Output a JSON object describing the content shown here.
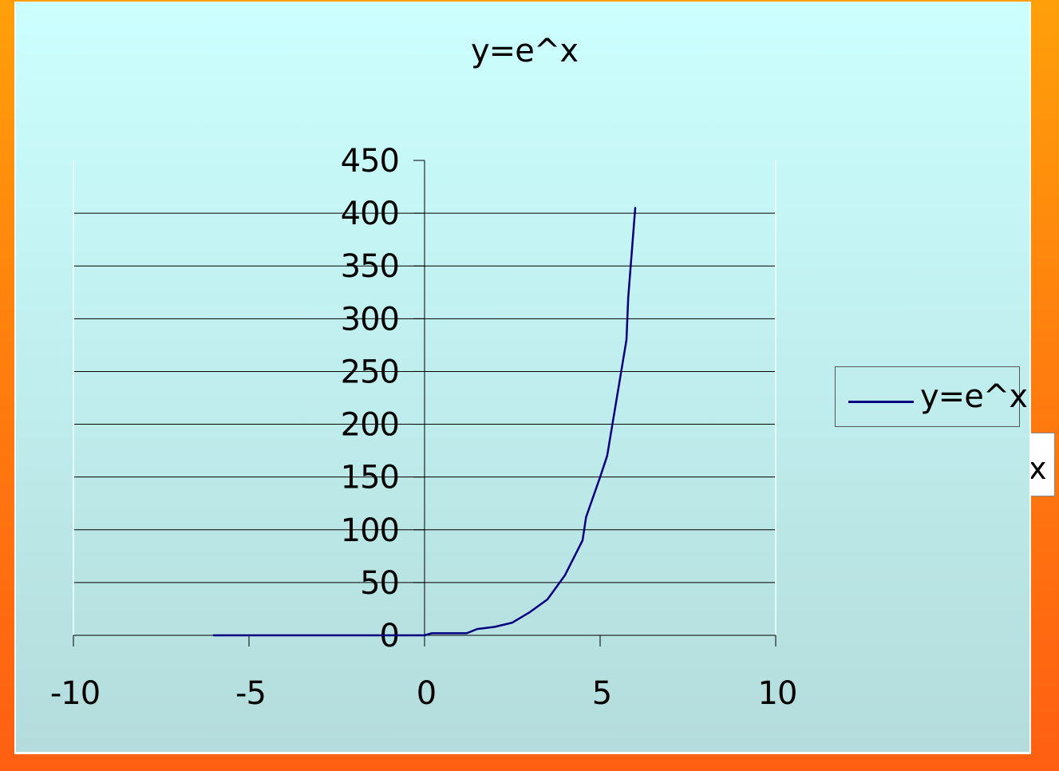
{
  "colors": {
    "series_line": "#00007f",
    "gridline": "#000000",
    "plot_bg_top": "#ccffff",
    "plot_bg_bottom": "#b4dcdc",
    "backdrop": "#ff7f0e"
  },
  "behind_legend_fragment": "x",
  "chart_data": {
    "type": "line",
    "title": "y=e^x",
    "xlabel": "",
    "ylabel": "",
    "xlim": [
      -10,
      10
    ],
    "ylim": [
      0,
      450
    ],
    "x_ticks": [
      -10,
      -5,
      0,
      5,
      10
    ],
    "y_ticks": [
      0,
      50,
      100,
      150,
      200,
      250,
      300,
      350,
      400,
      450
    ],
    "grid": "horizontal major gridlines",
    "legend_position": "right",
    "series": [
      {
        "name": "y=e^x",
        "x": [
          -6,
          -5,
          -4,
          -3,
          -2,
          -1,
          0,
          0.2,
          1.2,
          1.5,
          2,
          2.5,
          3,
          3.5,
          4,
          4.5,
          4.6,
          5,
          5.2,
          5.5,
          5.75,
          5.8,
          6
        ],
        "y": [
          0,
          0,
          0,
          0,
          0,
          0,
          0,
          2,
          2,
          6,
          8,
          12,
          22,
          34,
          57,
          90,
          112,
          150,
          170,
          230,
          280,
          320,
          405
        ]
      }
    ]
  }
}
